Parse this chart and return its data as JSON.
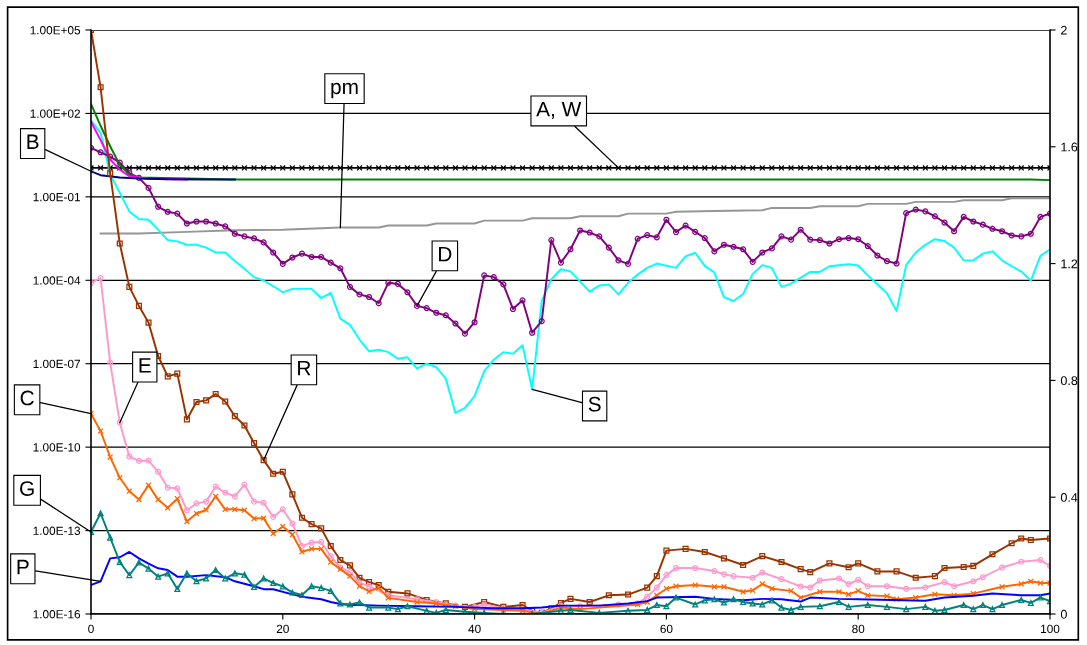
{
  "chart_data": {
    "type": "line",
    "log": "y",
    "grid": "y",
    "x": [
      0,
      1,
      2,
      3,
      4,
      5,
      6,
      7,
      8,
      9,
      10,
      11,
      12,
      13,
      14,
      15,
      16,
      17,
      18,
      19,
      20,
      21,
      22,
      23,
      24,
      25,
      26,
      27,
      28,
      29,
      30,
      31,
      32,
      33,
      34,
      35,
      36,
      37,
      38,
      39,
      40,
      41,
      42,
      43,
      44,
      45,
      46,
      47,
      48,
      49,
      50,
      51,
      52,
      53,
      54,
      55,
      56,
      57,
      58,
      59,
      60,
      61,
      62,
      63,
      64,
      65,
      66,
      67,
      68,
      69,
      70,
      71,
      72,
      73,
      74,
      75,
      76,
      77,
      78,
      79,
      80,
      81,
      82,
      83,
      84,
      85,
      86,
      87,
      88,
      89,
      90,
      91,
      92,
      93,
      94,
      95,
      96,
      97,
      98,
      99,
      100
    ],
    "xlim": [
      0,
      100
    ],
    "xticks": [
      0,
      20,
      40,
      60,
      80,
      100
    ],
    "ylim": [
      1e-16,
      100000.0
    ],
    "yticks": [
      {
        "value": 100000.0,
        "label": "1.00E+05"
      },
      {
        "value": 100.0,
        "label": "1.00E+02"
      },
      {
        "value": 0.1,
        "label": "1.00E-01"
      },
      {
        "value": 0.0001,
        "label": "1.00E-04"
      },
      {
        "value": 1e-07,
        "label": "1.00E-07"
      },
      {
        "value": 1e-10,
        "label": "1.00E-10"
      },
      {
        "value": 1e-13,
        "label": "1.00E-13"
      },
      {
        "value": 1e-16,
        "label": "1.00E-16"
      }
    ],
    "y2lim": [
      0,
      2
    ],
    "y2ticks": [
      0,
      0.4,
      0.8,
      1.2,
      1.6,
      2
    ],
    "series": [
      {
        "color": "#000000",
        "marker": "cross",
        "values": [
          1.1,
          1.1,
          1.1,
          1.1,
          1.1,
          1.1,
          1.1,
          1.1,
          1.1,
          1.1,
          1.1,
          1.1,
          1.1,
          1.1,
          1.1,
          1.1,
          1.1,
          1.1,
          1.1,
          1.1,
          1.1,
          1.1,
          1.1,
          1.1,
          1.1,
          1.1,
          1.1,
          1.1,
          1.1,
          1.1,
          1.1,
          1.1,
          1.1,
          1.1,
          1.1,
          1.1,
          1.1,
          1.1,
          1.1,
          1.1,
          1.1,
          1.1,
          1.1,
          1.1,
          1.1,
          1.1,
          1.1,
          1.1,
          1.1,
          1.1,
          1.1,
          1.1,
          1.1,
          1.1,
          1.1,
          1.1,
          1.1,
          1.1,
          1.1,
          1.1,
          1.1,
          1.1,
          1.1,
          1.1,
          1.1,
          1.1,
          1.1,
          1.1,
          1.1,
          1.1,
          1.1,
          1.1,
          1.1,
          1.1,
          1.1,
          1.1,
          1.1,
          1.1,
          1.1,
          1.1,
          1.1,
          1.1,
          1.1,
          1.1,
          1.1,
          1.1,
          1.1,
          1.1,
          1.1,
          1.1,
          1.1,
          1.1,
          1.1,
          1.1,
          1.1,
          1.1,
          1.1,
          1.1,
          1.1,
          1.1,
          1.1
        ]
      },
      {
        "color": "#969696",
        "marker": "none",
        "x": [
          1,
          5,
          10,
          15,
          20,
          26,
          30,
          31,
          35,
          36,
          40,
          41,
          45,
          46,
          50,
          51,
          55,
          56,
          60,
          61,
          65,
          70,
          71,
          75,
          76,
          80,
          81,
          85,
          86,
          90,
          91,
          95,
          96,
          100
        ],
        "values": [
          0.0048,
          0.0048,
          0.0055,
          0.0063,
          0.0066,
          0.0079,
          0.0079,
          0.0093,
          0.0093,
          0.011,
          0.011,
          0.014,
          0.014,
          0.017,
          0.017,
          0.02,
          0.02,
          0.025,
          0.025,
          0.029,
          0.031,
          0.033,
          0.04,
          0.04,
          0.046,
          0.046,
          0.056,
          0.056,
          0.066,
          0.066,
          0.076,
          0.076,
          0.089,
          0.089
        ]
      },
      {
        "color": "#00ffff",
        "marker": "none",
        "x": [
          0,
          1,
          2,
          3,
          4,
          5,
          6,
          7,
          8,
          9,
          10,
          11,
          12,
          13,
          14,
          15,
          16,
          17,
          18,
          19,
          20,
          21,
          22,
          23,
          24,
          25,
          26,
          27,
          28,
          29,
          30,
          31,
          32,
          33,
          34,
          35,
          36,
          37,
          38,
          39,
          40,
          41,
          42,
          43,
          44,
          45,
          46,
          47,
          48,
          49,
          50,
          52,
          53,
          54,
          55,
          56,
          57,
          58,
          59,
          61,
          62,
          63,
          64,
          65,
          66,
          67,
          68,
          69,
          70,
          71,
          72,
          73,
          75,
          76,
          77,
          79,
          80,
          81,
          83,
          84,
          85,
          86,
          87,
          88,
          89,
          90,
          91,
          92,
          93,
          94,
          95,
          96,
          97,
          98,
          99,
          100
        ],
        "values": [
          56,
          20,
          0.63,
          0.14,
          0.03,
          0.016,
          0.015,
          0.0066,
          0.0028,
          0.0025,
          0.0019,
          0.0019,
          0.0015,
          0.001,
          0.001,
          0.00049,
          0.00026,
          0.00013,
          9.8e-05,
          6.2e-05,
          3.7e-05,
          4.9e-05,
          4.9e-05,
          4.9e-05,
          2.3e-05,
          3.5e-05,
          4.2e-06,
          2.5e-06,
          7.4e-07,
          2.8e-07,
          3.2e-07,
          2.6e-07,
          1.5e-07,
          1.7e-07,
          6.6e-08,
          1e-07,
          7.6e-08,
          2.9e-08,
          1.7e-09,
          2.6e-09,
          6.8e-09,
          5.4e-08,
          1.4e-07,
          2.6e-07,
          2.3e-07,
          4.6e-07,
          1.2e-08,
          1.8e-05,
          0.00011,
          0.00025,
          0.00021,
          3.9e-05,
          6.5e-05,
          7.1e-05,
          3.1e-05,
          8.1e-05,
          0.00016,
          0.00028,
          0.0004,
          0.00028,
          0.00072,
          0.00098,
          0.00033,
          0.00019,
          2.5e-05,
          1.8e-05,
          3.2e-05,
          0.00017,
          0.00035,
          0.00028,
          5.8e-05,
          7.6e-05,
          0.0002,
          0.0002,
          0.00032,
          0.00038,
          0.00034,
          0.00015,
          3.4e-05,
          7.8e-06,
          0.00035,
          0.001,
          0.0019,
          0.003,
          0.0026,
          0.0015,
          0.00052,
          0.00052,
          0.00091,
          0.0011,
          0.00052,
          0.00032,
          0.00021,
          9.8e-05,
          0.00076,
          0.0013
        ]
      },
      {
        "color": "#800080",
        "marker": "circle",
        "values": [
          5.8,
          4,
          2.8,
          1.7,
          0.72,
          0.48,
          0.21,
          0.044,
          0.029,
          0.025,
          0.011,
          0.013,
          0.013,
          0.011,
          0.0087,
          0.0047,
          0.0038,
          0.0032,
          0.0023,
          0.001,
          0.00039,
          0.00066,
          0.00091,
          0.00069,
          0.00069,
          0.00043,
          0.00027,
          5.8e-05,
          3.1e-05,
          2.5e-05,
          1.5e-05,
          8.1e-05,
          7.4e-05,
          3.7e-05,
          1.2e-05,
          1e-05,
          6.8e-06,
          5.5e-06,
          2.8e-06,
          1.2e-06,
          3.1e-06,
          0.00015,
          0.00013,
          7.1e-05,
          9.3e-06,
          1.9e-05,
          1.3e-06,
          3.4e-06,
          0.0028,
          0.00043,
          0.0013,
          0.0062,
          0.0052,
          0.0038,
          0.0015,
          0.00052,
          0.00039,
          0.0031,
          0.0042,
          0.0035,
          0.015,
          0.0054,
          0.0093,
          0.0055,
          0.0033,
          0.0011,
          0.0019,
          0.0016,
          0.0013,
          0.00046,
          0.001,
          0.0014,
          0.0038,
          0.0029,
          0.0066,
          0.0029,
          0.0028,
          0.0021,
          0.003,
          0.0033,
          0.003,
          0.0017,
          0.00078,
          0.00049,
          0.0004,
          0.026,
          0.035,
          0.03,
          0.02,
          0.012,
          0.0058,
          0.019,
          0.013,
          0.01,
          0.0071,
          0.0058,
          0.0041,
          0.0038,
          0.0047,
          0.019,
          0.025
        ]
      },
      {
        "color": "#008000",
        "marker": "none",
        "x": [
          0,
          1,
          2,
          3,
          4,
          5,
          15,
          30,
          60,
          90,
          98,
          100
        ],
        "values": [
          220,
          36,
          6.6,
          1.4,
          0.63,
          0.5,
          0.42,
          0.42,
          0.42,
          0.42,
          0.42,
          0.4
        ]
      },
      {
        "color": "#ff00ff",
        "marker": "none",
        "x": [
          0,
          1,
          2,
          3,
          4,
          6,
          10
        ],
        "values": [
          50,
          11,
          2.2,
          0.95,
          0.55,
          0.45,
          0.42
        ]
      },
      {
        "color": "#000080",
        "marker": "none",
        "x": [
          0,
          1,
          3,
          5,
          8,
          12,
          15
        ],
        "values": [
          0.83,
          0.6,
          0.5,
          0.46,
          0.43,
          0.42,
          0.42
        ]
      },
      {
        "color": "#993300",
        "marker": "square",
        "x": [
          0,
          1,
          2,
          3,
          4,
          5,
          6,
          7,
          8,
          9,
          10,
          11,
          12,
          13,
          14,
          15,
          16,
          17,
          18,
          19,
          20,
          21,
          22,
          23,
          24,
          25,
          26,
          27,
          28,
          29,
          30,
          31,
          33,
          35,
          37,
          39,
          41,
          43,
          45,
          46,
          47,
          48,
          49,
          50,
          52,
          54,
          56,
          58,
          59,
          60,
          62,
          64,
          66,
          68,
          70,
          72,
          74,
          75,
          77,
          79,
          80,
          82,
          84,
          86,
          88,
          89,
          91,
          92,
          94,
          96,
          97,
          98,
          100
        ],
        "values": [
          100000.0,
          870,
          0.7,
          0.0021,
          5.8e-05,
          1.2e-05,
          3e-06,
          1.9e-07,
          3.5e-08,
          4.4e-08,
          1e-09,
          4.2e-09,
          4.8e-09,
          8.1e-09,
          4.4e-09,
          1.3e-09,
          6e-10,
          1.4e-10,
          3.4e-11,
          1.1e-11,
          1.3e-11,
          2e-12,
          2.9e-13,
          1.7e-13,
          1.2e-13,
          2.8e-14,
          8.7e-15,
          5.6e-15,
          2e-15,
          1.4e-15,
          1.1e-15,
          6.3e-16,
          5.5e-16,
          3.2e-16,
          2.4e-16,
          1.8e-16,
          2.7e-16,
          1.8e-16,
          2.1e-16,
          1.3e-16,
          1.1e-16,
          1.6e-16,
          2.5e-16,
          3.5e-16,
          2.7e-16,
          4.7e-16,
          5e-16,
          8.9e-16,
          2.3e-15,
          1.9e-14,
          2.2e-14,
          1.7e-14,
          1e-14,
          5.8e-15,
          1.2e-14,
          7.4e-15,
          4.1e-15,
          3.2e-15,
          6.6e-15,
          4.8e-15,
          6.6e-15,
          3.4e-15,
          3.4e-15,
          2e-15,
          2.3e-15,
          4.5e-15,
          4.9e-15,
          5.4e-15,
          1.4e-14,
          3.5e-14,
          5.2e-14,
          4.6e-14,
          5.2e-14
        ]
      },
      {
        "color": "#ff99cc",
        "marker": "circle",
        "x": [
          0,
          1,
          2,
          3,
          4,
          5,
          6,
          7,
          8,
          9,
          10,
          11,
          12,
          13,
          14,
          15,
          16,
          17,
          18,
          19,
          20,
          21,
          22,
          23,
          24,
          25,
          26,
          27,
          28,
          29,
          31,
          34,
          36,
          38,
          40,
          41,
          43,
          45,
          47,
          49,
          51,
          55,
          57,
          58,
          59,
          60,
          61,
          63,
          65,
          66,
          67,
          69,
          70,
          72,
          74,
          75,
          76,
          78,
          79,
          80,
          81,
          83,
          85,
          87,
          89,
          90,
          92,
          93,
          95,
          97,
          99,
          100
        ],
        "values": [
          8.1e-05,
          0.00012,
          1.1e-07,
          7.6e-10,
          4.6e-11,
          3.2e-11,
          3.3e-11,
          1.3e-11,
          3.5e-12,
          3.3e-12,
          5.4e-13,
          9.5e-13,
          1.1e-12,
          3.8e-12,
          2.3e-12,
          1.7e-12,
          4.5e-12,
          1.1e-12,
          1e-12,
          3.1e-13,
          5.8e-13,
          1.8e-13,
          2.8e-14,
          3.7e-14,
          3.9e-14,
          1.2e-14,
          4.7e-15,
          3.2e-15,
          1.3e-15,
          1e-15,
          4.7e-16,
          3.4e-16,
          2.7e-16,
          2e-16,
          1.8e-16,
          2.2e-16,
          1.6e-16,
          1.5e-16,
          1.1e-16,
          2e-16,
          1.9e-16,
          2.2e-16,
          2.4e-16,
          4.2e-16,
          8.9e-16,
          2.5e-15,
          4.5e-15,
          4.5e-15,
          3.5e-15,
          2.7e-15,
          2.3e-15,
          2e-15,
          3.1e-15,
          1.8e-15,
          9.8e-16,
          8.9e-16,
          1.6e-15,
          1.9e-15,
          1.2e-15,
          1.7e-15,
          1e-15,
          1e-15,
          8.1e-16,
          9e-16,
          1.4e-15,
          1e-15,
          1.5e-15,
          2.1e-15,
          4.7e-15,
          7.6e-15,
          8.7e-15,
          5.4e-15
        ]
      },
      {
        "color": "#ff6600",
        "marker": "cross",
        "x": [
          0,
          1,
          2,
          3,
          4,
          5,
          6,
          7,
          8,
          9,
          10,
          11,
          12,
          13,
          14,
          15,
          16,
          17,
          18,
          19,
          20,
          21,
          22,
          23,
          24,
          25,
          26,
          27,
          28,
          29,
          30,
          31,
          34,
          36,
          38,
          40,
          43,
          45,
          47,
          49,
          51,
          57,
          58,
          59,
          60,
          61,
          63,
          65,
          66,
          68,
          69,
          70,
          71,
          73,
          74,
          76,
          78,
          79,
          80,
          81,
          83,
          84,
          86,
          88,
          90,
          92,
          95,
          97,
          98,
          99,
          100
        ],
        "values": [
          1.6e-09,
          3.8e-10,
          4.4e-11,
          7.9e-12,
          2.6e-12,
          1.3e-12,
          4.3e-12,
          1.3e-12,
          6.6e-13,
          1.4e-12,
          2.1e-13,
          4.1e-13,
          5.5e-13,
          1.7e-12,
          5.8e-13,
          5.8e-13,
          5.4e-13,
          2.7e-13,
          2.8e-13,
          7.8e-14,
          1.4e-13,
          7.2e-14,
          1.7e-14,
          2.2e-14,
          2.2e-14,
          7.4e-15,
          4.1e-15,
          2.3e-15,
          1e-15,
          6.5e-16,
          8.7e-16,
          3.8e-16,
          2.7e-16,
          2.4e-16,
          1.9e-16,
          1.5e-16,
          1.4e-16,
          1.3e-16,
          1e-16,
          1.7e-16,
          1.5e-16,
          2.2e-16,
          2.7e-16,
          4.7e-16,
          8.1e-16,
          1e-15,
          1.1e-15,
          9.5e-16,
          9.5e-16,
          6.3e-16,
          7.1e-16,
          1.2e-15,
          8.1e-16,
          6.8e-16,
          3.9e-16,
          6.3e-16,
          6.3e-16,
          5.1e-16,
          6.8e-16,
          4.7e-16,
          4.4e-16,
          3.4e-16,
          3.9e-16,
          5.1e-16,
          4.7e-16,
          5.4e-16,
          9.5e-16,
          1.2e-15,
          1.5e-15,
          1.3e-15,
          1.3e-15
        ]
      },
      {
        "color": "#0000ff",
        "marker": "none",
        "x": [
          0,
          1,
          2,
          3,
          4,
          5,
          6,
          7,
          8,
          9,
          10,
          12,
          14,
          15,
          17,
          18,
          19,
          21,
          22,
          24,
          25,
          26,
          27,
          28,
          30,
          34,
          38,
          42,
          45,
          47,
          49,
          53,
          56,
          58,
          59,
          63,
          65,
          68,
          70,
          72,
          74,
          75,
          78,
          80,
          87,
          89,
          92,
          94,
          97,
          99,
          100
        ],
        "values": [
          1.1e-15,
          1.5e-15,
          1e-14,
          1.1e-14,
          1.7e-14,
          1e-14,
          6.5e-15,
          4.4e-15,
          3.8e-15,
          2.2e-15,
          2.2e-15,
          2.5e-15,
          2.1e-15,
          1.5e-15,
          1e-15,
          7.8e-16,
          7.8e-16,
          5.1e-16,
          4.2e-16,
          3.4e-16,
          2.7e-16,
          2.3e-16,
          2.1e-16,
          2.1e-16,
          2e-16,
          1.9e-16,
          1.8e-16,
          1.6e-16,
          1.6e-16,
          1.7e-16,
          2e-16,
          2e-16,
          2.4e-16,
          2.9e-16,
          3.9e-16,
          4.2e-16,
          3.5e-16,
          3.1e-16,
          3.5e-16,
          3.4e-16,
          2.8e-16,
          3.9e-16,
          3.5e-16,
          3.4e-16,
          3e-16,
          3.9e-16,
          4.5e-16,
          5.5e-16,
          4.7e-16,
          4.7e-16,
          5.5e-16
        ]
      },
      {
        "color": "#008080",
        "marker": "triangle",
        "x": [
          0,
          1,
          2,
          3,
          4,
          5,
          6,
          7,
          8,
          9,
          10,
          11,
          12,
          13,
          14,
          15,
          16,
          17,
          18,
          19,
          20,
          21,
          22,
          23,
          24,
          25,
          26,
          27,
          28,
          29,
          31,
          32,
          33,
          35,
          36,
          37,
          39,
          41,
          43,
          46,
          49,
          50,
          53,
          56,
          58,
          59,
          60,
          61,
          63,
          64,
          65,
          66,
          67,
          68,
          69,
          70,
          71,
          72,
          73,
          74,
          76,
          78,
          79,
          81,
          83,
          85,
          87,
          88,
          89,
          91,
          92,
          93,
          94,
          95,
          97,
          98,
          99,
          100
        ],
        "values": [
          8.9e-14,
          4.2e-13,
          5.6e-14,
          7.4e-15,
          2.5e-15,
          7.1e-15,
          4.3e-15,
          2.2e-15,
          2.9e-15,
          7.9e-16,
          2.9e-15,
          1.5e-15,
          1.9e-15,
          3.8e-15,
          1.9e-15,
          2.9e-15,
          2.6e-15,
          9.3e-16,
          1.9e-15,
          1.3e-15,
          9.8e-16,
          5.9e-16,
          4.8e-16,
          1e-15,
          8.7e-16,
          6.8e-16,
          2.4e-16,
          2.2e-16,
          2.6e-16,
          1.7e-16,
          1.7e-16,
          1.5e-16,
          1.9e-16,
          1.3e-16,
          1.1e-16,
          1.4e-16,
          1.2e-16,
          1.1e-16,
          1e-16,
          1e-16,
          1.3e-16,
          1.4e-16,
          1.1e-16,
          1.3e-16,
          1.4e-16,
          2.1e-16,
          1.9e-16,
          3.9e-16,
          2.2e-16,
          3.1e-16,
          3.4e-16,
          2.6e-16,
          3.4e-16,
          2.7e-16,
          2.4e-16,
          2.2e-16,
          3.1e-16,
          1.7e-16,
          1.4e-16,
          1.8e-16,
          1.9e-16,
          2.7e-16,
          1.8e-16,
          2.1e-16,
          1.8e-16,
          1.5e-16,
          1.8e-16,
          1.3e-16,
          1.4e-16,
          2.1e-16,
          1.5e-16,
          2.1e-16,
          1.5e-16,
          2.1e-16,
          3.2e-16,
          2.5e-16,
          3.9e-16,
          2.9e-16
        ]
      }
    ],
    "annotations": [
      {
        "text": "B",
        "x": 0,
        "y": 0.83
      },
      {
        "text": "pm",
        "x": 26,
        "y": 0.0079
      },
      {
        "text": "A, W",
        "x": 55,
        "y": 1.1
      },
      {
        "text": "D",
        "x": 34,
        "y": 1.2e-05
      },
      {
        "text": "S",
        "x": 46,
        "y": 1.2e-08
      },
      {
        "text": "E",
        "x": 3,
        "y": 7.6e-10
      },
      {
        "text": "C",
        "x": 0,
        "y": 1.6e-09
      },
      {
        "text": "R",
        "x": 18,
        "y": 3.4e-11
      },
      {
        "text": "G",
        "x": 0,
        "y": 8.9e-14
      },
      {
        "text": "P",
        "x": 1,
        "y": 1.5e-15
      }
    ]
  }
}
